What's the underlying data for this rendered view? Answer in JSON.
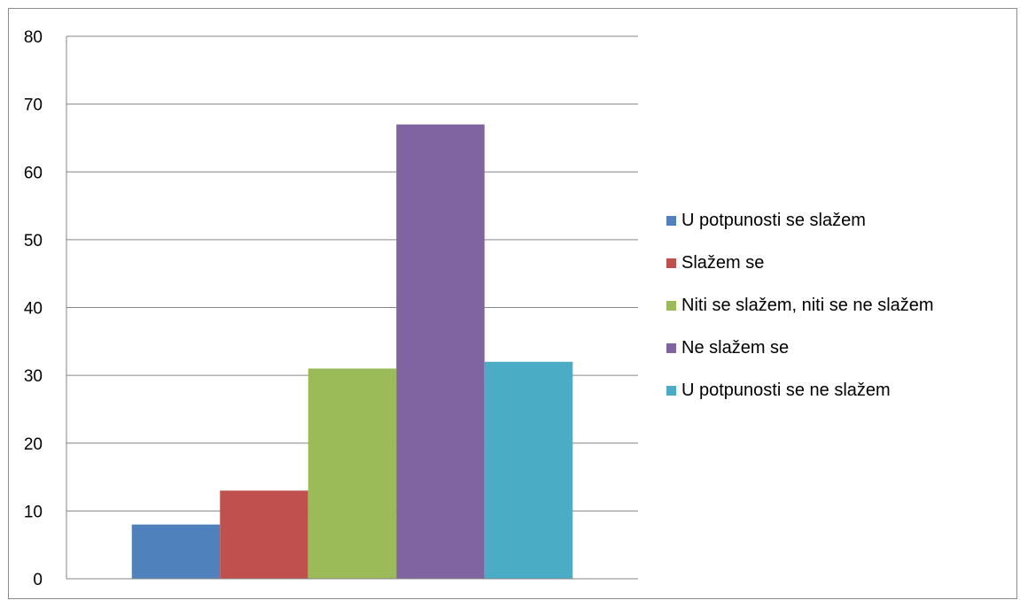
{
  "chart_data": {
    "type": "bar",
    "title": "",
    "xlabel": "",
    "ylabel": "",
    "ylim": [
      0,
      80
    ],
    "yticks": [
      0,
      10,
      20,
      30,
      40,
      50,
      60,
      70,
      80
    ],
    "grid": true,
    "legend_position": "right",
    "series": [
      {
        "name": "U potpunosti se slažem",
        "value": 8,
        "color": "#4f81bd"
      },
      {
        "name": "Slažem se",
        "value": 13,
        "color": "#c0504d"
      },
      {
        "name": "Niti se slažem, niti se ne slažem",
        "value": 31,
        "color": "#9bbb59"
      },
      {
        "name": "Ne slažem se",
        "value": 67,
        "color": "#8064a2"
      },
      {
        "name": "U potpunosti se ne slažem",
        "value": 32,
        "color": "#4bacc6"
      }
    ]
  }
}
